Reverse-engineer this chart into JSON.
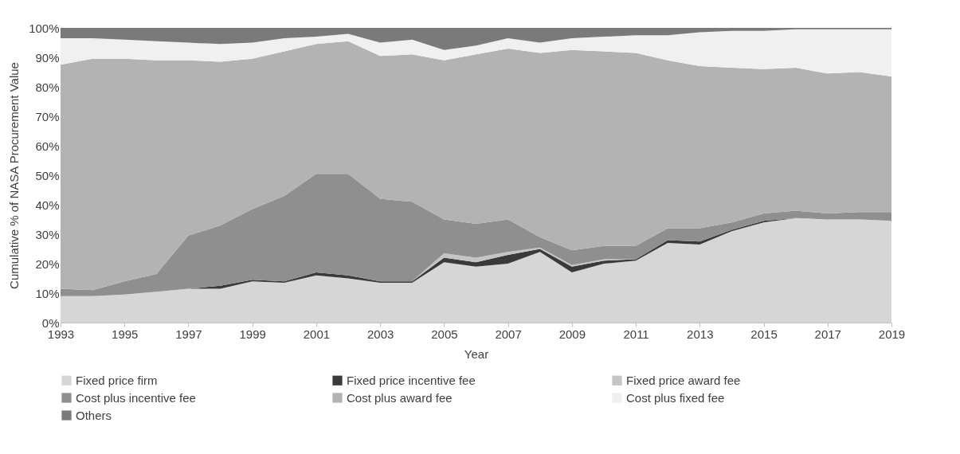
{
  "chart_data": {
    "type": "area",
    "stacked": true,
    "xlabel": "Year",
    "ylabel": "Cumulative % of NASA Procurement Value",
    "x": [
      1993,
      1994,
      1995,
      1996,
      1997,
      1998,
      1999,
      2000,
      2001,
      2002,
      2003,
      2004,
      2005,
      2006,
      2007,
      2008,
      2009,
      2010,
      2011,
      2012,
      2013,
      2014,
      2015,
      2016,
      2017,
      2018,
      2019
    ],
    "xlim": [
      1993,
      2019
    ],
    "xticks": [
      1993,
      1995,
      1997,
      1999,
      2001,
      2003,
      2005,
      2007,
      2009,
      2011,
      2013,
      2015,
      2017,
      2019
    ],
    "ylim": [
      0,
      100
    ],
    "yticks": [
      {
        "value": 0,
        "label": "0%"
      },
      {
        "value": 10,
        "label": "10%"
      },
      {
        "value": 20,
        "label": "20%"
      },
      {
        "value": 30,
        "label": "30%"
      },
      {
        "value": 40,
        "label": "40%"
      },
      {
        "value": 50,
        "label": "50%"
      },
      {
        "value": 60,
        "label": "60%"
      },
      {
        "value": 70,
        "label": "70%"
      },
      {
        "value": 80,
        "label": "80%"
      },
      {
        "value": 90,
        "label": "90%"
      },
      {
        "value": 100,
        "label": "100%"
      }
    ],
    "legend": "bottom",
    "series": [
      {
        "name": "Fixed price firm",
        "color": "#d6d6d6",
        "values": [
          9,
          9,
          9.5,
          10.5,
          11.5,
          11.5,
          14,
          13.5,
          16,
          15,
          13.5,
          13.5,
          20.5,
          19,
          20,
          24,
          17,
          20,
          21,
          27,
          26.5,
          31,
          34,
          35.5,
          35,
          35,
          34.5
        ]
      },
      {
        "name": "Fixed price incentive fee",
        "color": "#3a3a3a",
        "values": [
          0,
          0,
          0,
          0,
          0,
          1,
          0.5,
          0.5,
          1,
          1,
          0.5,
          0.5,
          1.5,
          1.5,
          3,
          1,
          2,
          1,
          0.5,
          1,
          1,
          0.5,
          0.5,
          0,
          0,
          0,
          0
        ]
      },
      {
        "name": "Fixed price award fee",
        "color": "#c4c4c4",
        "values": [
          null,
          null,
          null,
          null,
          null,
          null,
          null,
          null,
          null,
          null,
          null,
          0,
          1.5,
          1.5,
          1,
          0.5,
          0.5,
          0.5,
          0,
          null,
          null,
          null,
          null,
          null,
          null,
          null,
          null
        ]
      },
      {
        "name": "Cost plus incentive fee",
        "color": "#8f8f8f",
        "values": [
          2.5,
          2,
          4.5,
          6,
          18,
          20.5,
          24,
          29,
          33.5,
          34.5,
          28,
          27,
          11.5,
          11.5,
          11,
          3.5,
          5,
          4.5,
          4.5,
          4,
          4.5,
          2.5,
          2.5,
          2.5,
          2,
          2.5,
          3
        ]
      },
      {
        "name": "Cost plus award fee",
        "color": "#b3b3b3",
        "values": [
          76,
          78.5,
          75.5,
          72.5,
          59.5,
          55.5,
          51,
          49,
          44,
          45,
          48.5,
          50,
          54,
          57.5,
          58,
          62.5,
          68,
          66,
          65.5,
          57,
          55,
          52.5,
          49,
          48.5,
          47.5,
          47.5,
          46
        ]
      },
      {
        "name": "Cost plus fixed fee",
        "color": "#f0f0f0",
        "values": [
          9,
          7,
          6.5,
          6.5,
          6,
          6,
          5.5,
          4.5,
          2.5,
          2.5,
          4.5,
          5,
          3.5,
          3,
          3.5,
          3.5,
          4,
          5,
          6,
          8.5,
          11.5,
          12.5,
          13,
          13,
          15,
          14.5,
          16
        ]
      },
      {
        "name": "Others",
        "color": "#7a7a7a",
        "values": [
          3.5,
          3.5,
          4,
          4.5,
          5,
          5.5,
          5,
          3.5,
          3,
          2,
          5,
          4,
          7.5,
          6,
          3.5,
          5,
          3.5,
          3,
          2.5,
          2.5,
          1.5,
          1,
          1,
          0.5,
          0.5,
          0.5,
          0.5
        ]
      }
    ]
  }
}
